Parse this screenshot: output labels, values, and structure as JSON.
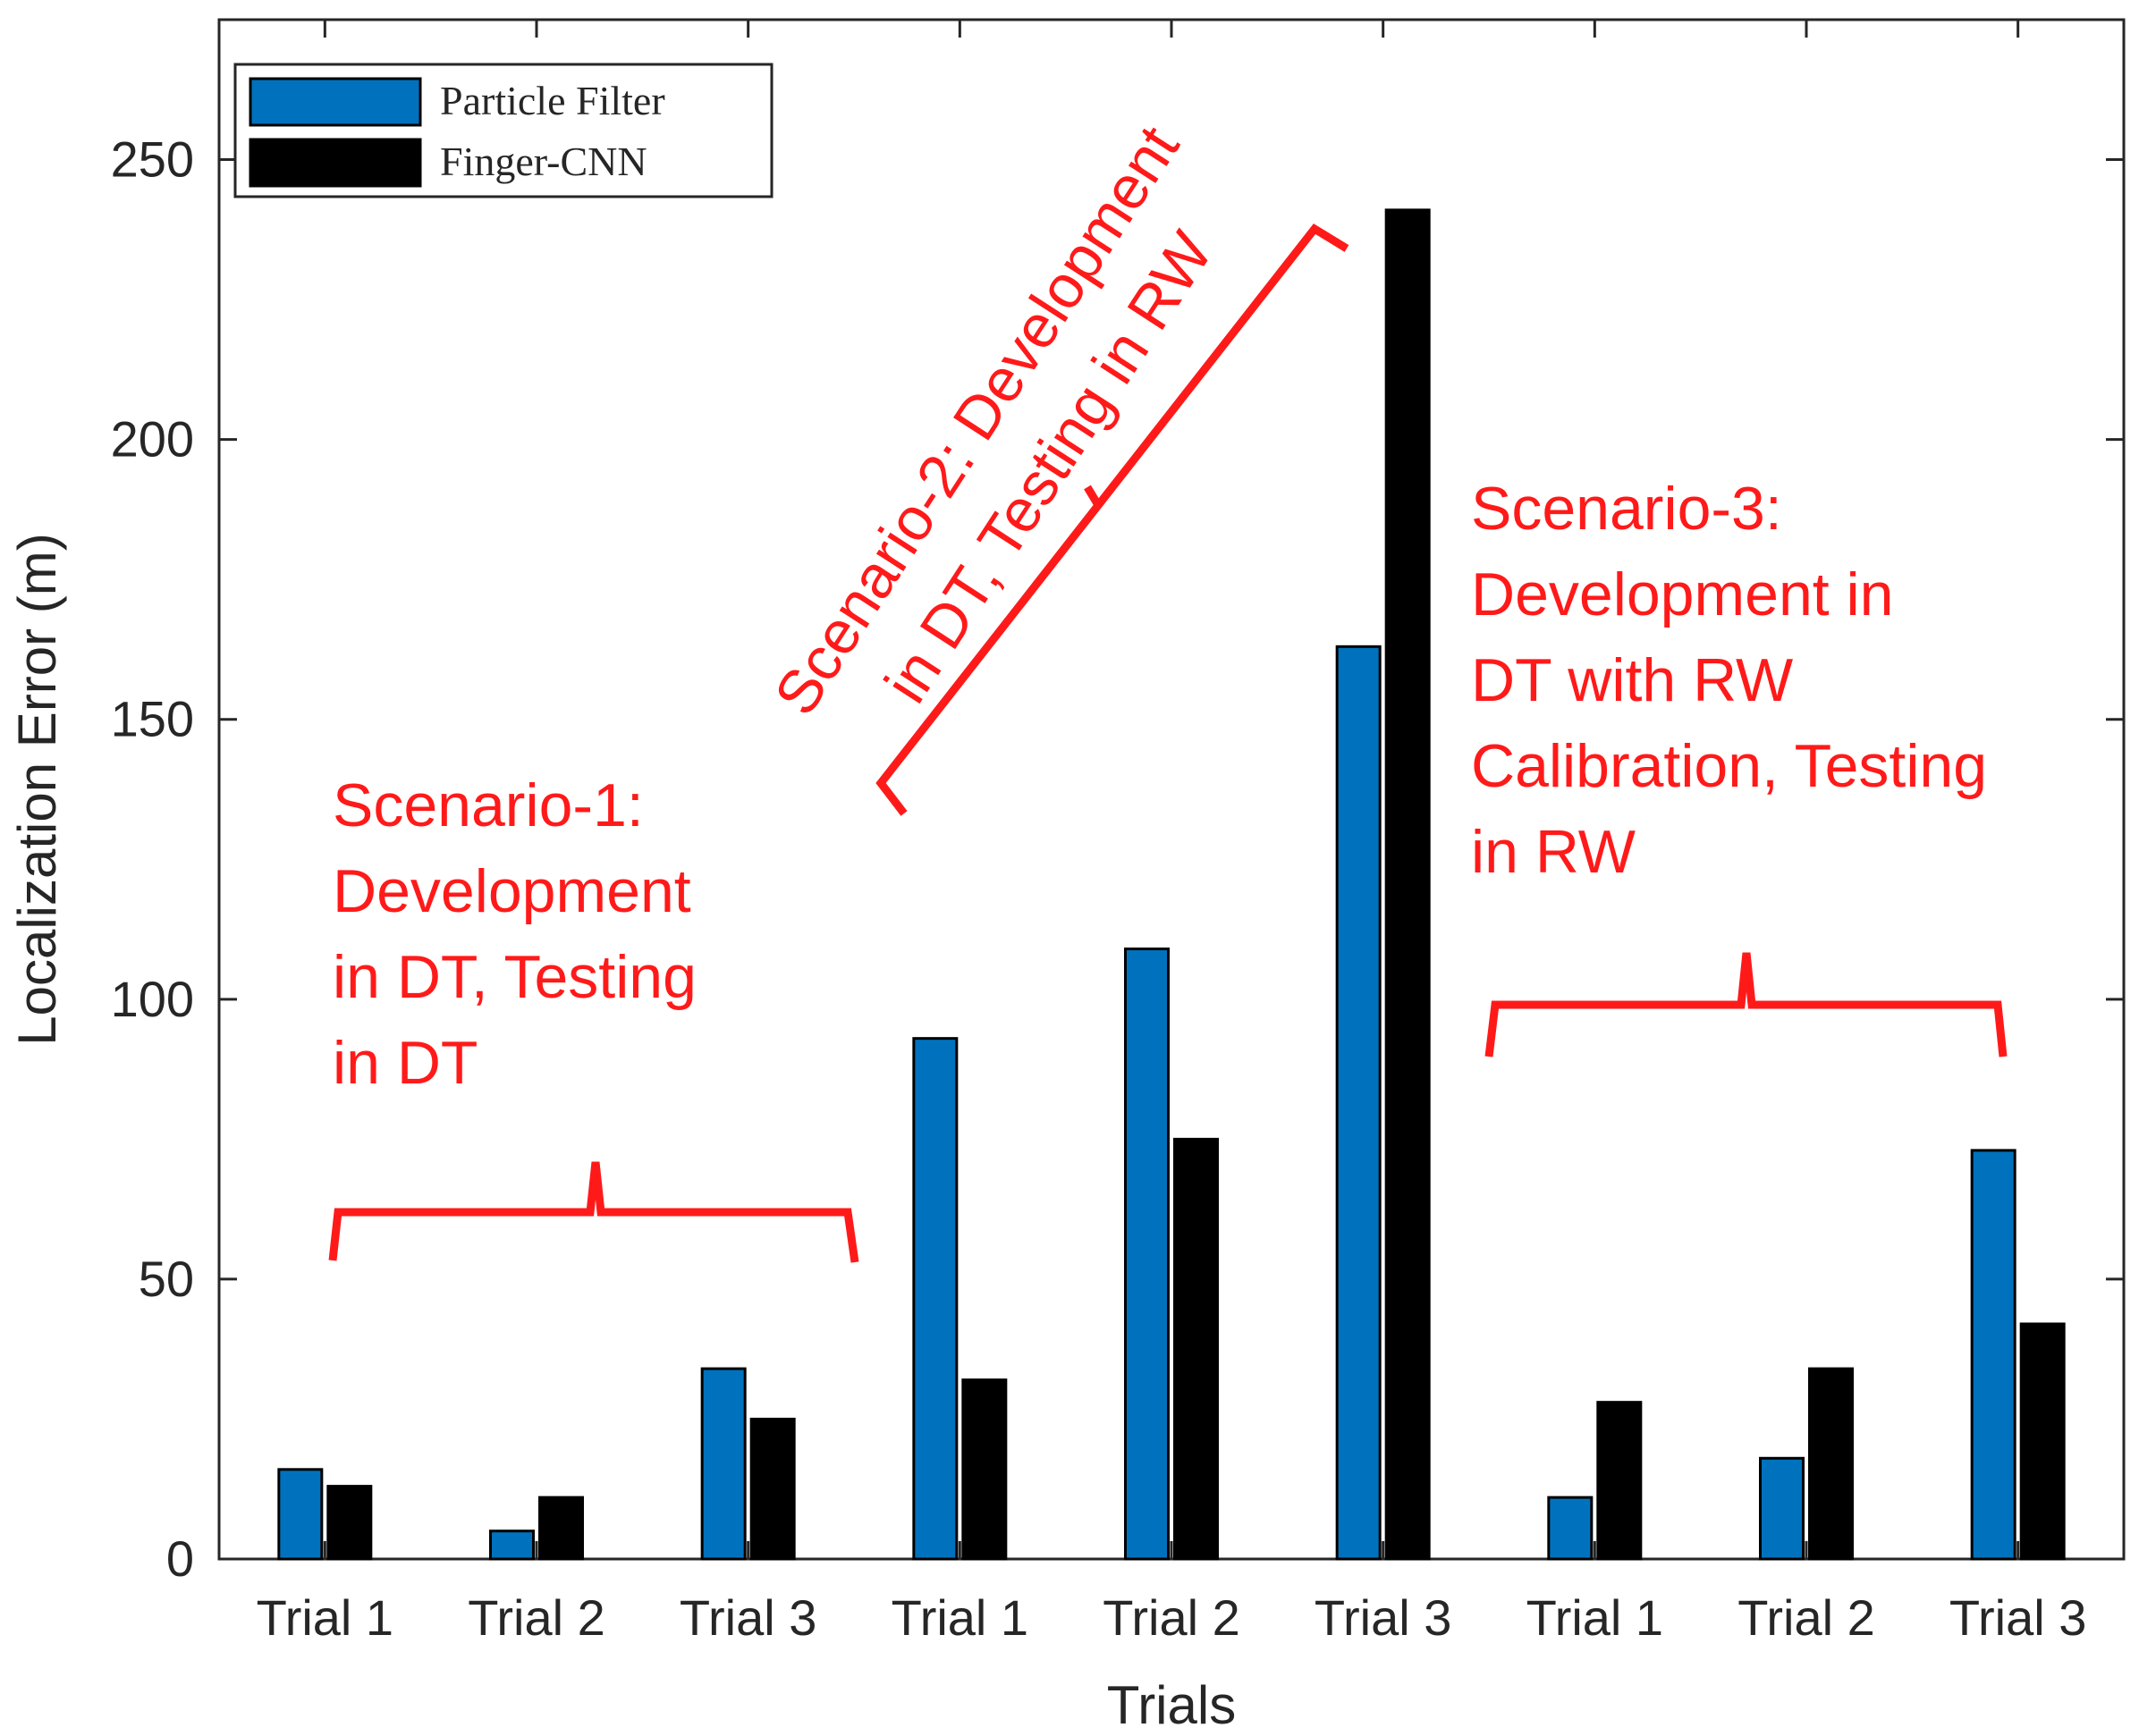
{
  "chart_data": {
    "type": "bar",
    "title": "",
    "xlabel": "Trials",
    "ylabel": "Localization Error (m)",
    "ylim": [
      0,
      275
    ],
    "yticks": [
      0,
      50,
      100,
      150,
      200,
      250
    ],
    "categories": [
      "Trial 1",
      "Trial 2",
      "Trial 3",
      "Trial 1",
      "Trial 2",
      "Trial 3",
      "Trial 1",
      "Trial 2",
      "Trial 3"
    ],
    "series": [
      {
        "name": "Particle Filter",
        "color": "#0072bd",
        "values": [
          16,
          5,
          34,
          93,
          109,
          163,
          11,
          18,
          73
        ]
      },
      {
        "name": "Finger-CNN",
        "color": "#000000",
        "values": [
          13,
          11,
          25,
          32,
          75,
          241,
          28,
          34,
          42
        ]
      }
    ],
    "legend_position": "top-left",
    "annotations": [
      {
        "id": "scenario-1",
        "lines": [
          "Scenario-1:",
          "Development",
          "in DT, Testing",
          "in DT"
        ],
        "groups": [
          1,
          2,
          3
        ]
      },
      {
        "id": "scenario-2",
        "lines": [
          "Scenario-2: Development",
          "in DT, Testing in RW"
        ],
        "groups": [
          4,
          5,
          6
        ]
      },
      {
        "id": "scenario-3",
        "lines": [
          "Scenario-3:",
          "Development in",
          "DT with RW",
          "Calibration, Testing",
          "in RW"
        ],
        "groups": [
          7,
          8,
          9
        ]
      }
    ]
  }
}
